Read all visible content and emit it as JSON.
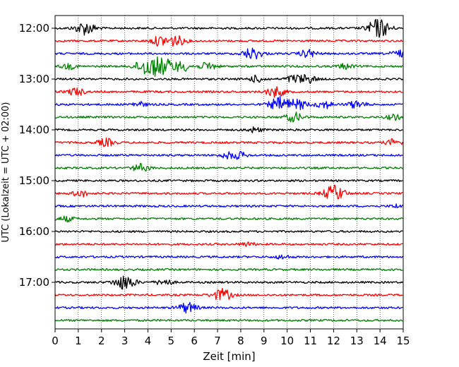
{
  "chart_data": {
    "type": "line",
    "title": "",
    "xlabel": "Zeit  [min]",
    "ylabel": "UTC (Lokalzeit = UTC + 02:00)",
    "xlim": [
      0,
      15
    ],
    "xticks": [
      0,
      1,
      2,
      3,
      4,
      5,
      6,
      7,
      8,
      9,
      10,
      11,
      12,
      13,
      14,
      15
    ],
    "ytick_labels": [
      "12:00",
      "13:00",
      "14:00",
      "15:00",
      "16:00",
      "17:00"
    ],
    "grid": "vertical dotted lines at each minute",
    "trace_interval_min": 15,
    "color_cycle": [
      "#000000",
      "#ff0000",
      "#0000ff",
      "#008000"
    ],
    "series": [
      {
        "start": "12:00",
        "events": [
          {
            "t": 1.3,
            "amp": 1.0
          },
          {
            "t": 13.8,
            "amp": 0.9
          },
          {
            "t": 14.1,
            "amp": 0.8
          }
        ]
      },
      {
        "start": "12:15",
        "events": [
          {
            "t": 4.5,
            "amp": 0.7
          },
          {
            "t": 5.2,
            "amp": 0.8
          }
        ]
      },
      {
        "start": "12:30",
        "events": [
          {
            "t": 8.5,
            "amp": 0.9
          },
          {
            "t": 10.9,
            "amp": 0.6
          },
          {
            "t": 14.8,
            "amp": 0.5
          }
        ]
      },
      {
        "start": "12:45",
        "events": [
          {
            "t": 4.0,
            "amp": 1.4
          },
          {
            "t": 4.7,
            "amp": 1.1
          },
          {
            "t": 5.5,
            "amp": 0.7
          },
          {
            "t": 6.6,
            "amp": 0.6
          },
          {
            "t": 0.6,
            "amp": 0.4
          },
          {
            "t": 12.5,
            "amp": 0.4
          }
        ]
      },
      {
        "start": "13:00",
        "events": [
          {
            "t": 8.7,
            "amp": 0.5
          },
          {
            "t": 10.3,
            "amp": 0.6
          },
          {
            "t": 10.9,
            "amp": 0.6
          }
        ]
      },
      {
        "start": "13:15",
        "events": [
          {
            "t": 0.9,
            "amp": 0.6
          },
          {
            "t": 9.5,
            "amp": 0.8
          }
        ]
      },
      {
        "start": "13:30",
        "events": [
          {
            "t": 9.7,
            "amp": 1.1
          },
          {
            "t": 10.5,
            "amp": 0.7
          },
          {
            "t": 11.6,
            "amp": 0.6
          },
          {
            "t": 13.0,
            "amp": 0.6
          },
          {
            "t": 3.6,
            "amp": 0.4
          }
        ]
      },
      {
        "start": "13:45",
        "events": [
          {
            "t": 10.3,
            "amp": 0.7
          },
          {
            "t": 14.6,
            "amp": 0.4
          }
        ]
      },
      {
        "start": "14:00",
        "events": [
          {
            "t": 8.6,
            "amp": 0.4
          }
        ]
      },
      {
        "start": "14:15",
        "events": [
          {
            "t": 2.2,
            "amp": 0.6
          },
          {
            "t": 14.6,
            "amp": 0.5
          }
        ]
      },
      {
        "start": "14:30",
        "events": [
          {
            "t": 7.4,
            "amp": 0.4
          },
          {
            "t": 7.9,
            "amp": 0.5
          }
        ]
      },
      {
        "start": "14:45",
        "events": [
          {
            "t": 3.7,
            "amp": 0.6
          }
        ]
      },
      {
        "start": "15:00",
        "events": []
      },
      {
        "start": "15:15",
        "events": [
          {
            "t": 1.1,
            "amp": 0.5
          },
          {
            "t": 11.9,
            "amp": 0.8
          },
          {
            "t": 12.2,
            "amp": 0.6
          }
        ]
      },
      {
        "start": "15:30",
        "events": [
          {
            "t": 14.8,
            "amp": 0.3
          }
        ]
      },
      {
        "start": "15:45",
        "events": [
          {
            "t": 0.5,
            "amp": 0.4
          }
        ]
      },
      {
        "start": "16:00",
        "events": []
      },
      {
        "start": "16:15",
        "events": [
          {
            "t": 8.3,
            "amp": 0.3
          }
        ]
      },
      {
        "start": "16:30",
        "events": [
          {
            "t": 9.8,
            "amp": 0.3
          }
        ]
      },
      {
        "start": "16:45",
        "events": []
      },
      {
        "start": "17:00",
        "events": [
          {
            "t": 3.0,
            "amp": 1.1
          },
          {
            "t": 4.7,
            "amp": 0.5
          }
        ]
      },
      {
        "start": "17:15",
        "events": [
          {
            "t": 7.2,
            "amp": 0.9
          }
        ]
      },
      {
        "start": "17:30",
        "events": [
          {
            "t": 5.7,
            "amp": 0.8
          }
        ]
      },
      {
        "start": "17:45",
        "events": []
      }
    ]
  }
}
